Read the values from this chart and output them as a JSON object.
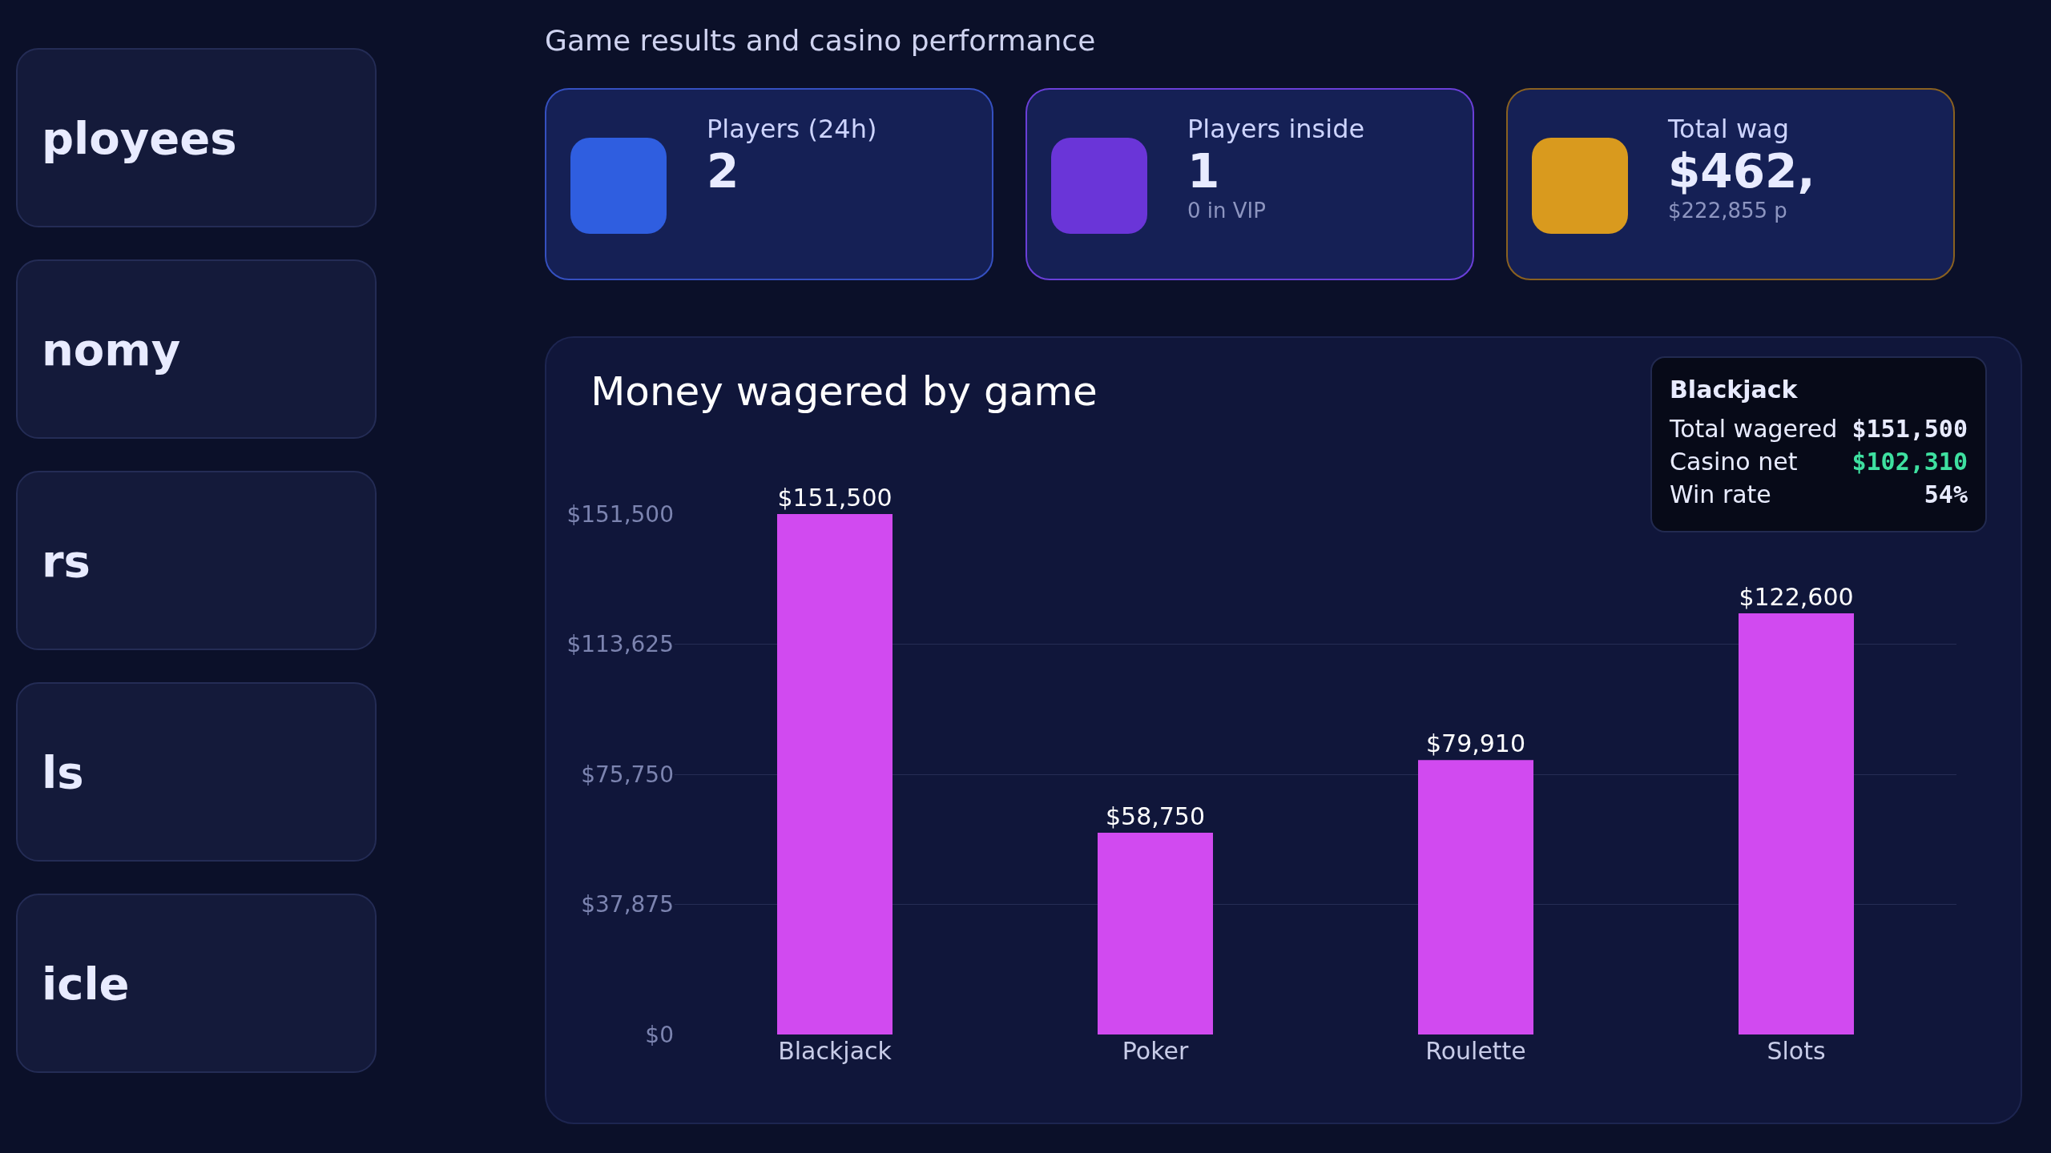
{
  "chart_data": {
    "type": "bar",
    "title": "Money wagered by game",
    "subtitle": "Game results and casino performance",
    "categories": [
      "Blackjack",
      "Poker",
      "Roulette",
      "Slots"
    ],
    "values": [
      151500,
      58750,
      79910,
      122600
    ],
    "value_labels": [
      "$151,500",
      "$58,750",
      "$79,910",
      "$122,600"
    ],
    "color": "#d14af0",
    "ylim": [
      0,
      151500
    ],
    "yticks": [
      {
        "value": 0,
        "label": "$0"
      },
      {
        "value": 37875,
        "label": "$37,875"
      },
      {
        "value": 75750,
        "label": "$75,750"
      },
      {
        "value": 113625,
        "label": "$113,625"
      },
      {
        "value": 151500,
        "label": "$151,500"
      }
    ],
    "grid": "y",
    "annotations": [
      "Players (24h)",
      "2",
      "Players inside",
      "1",
      "0 in VIP",
      "Total wag",
      "$462,",
      "$222,855 p",
      "Blackjack",
      "Total wagered",
      "$151,500",
      "Casino net",
      "$102,310",
      "Win rate",
      "54%",
      "ployees",
      "nomy",
      "rs",
      "ls",
      "icle"
    ]
  }
}
